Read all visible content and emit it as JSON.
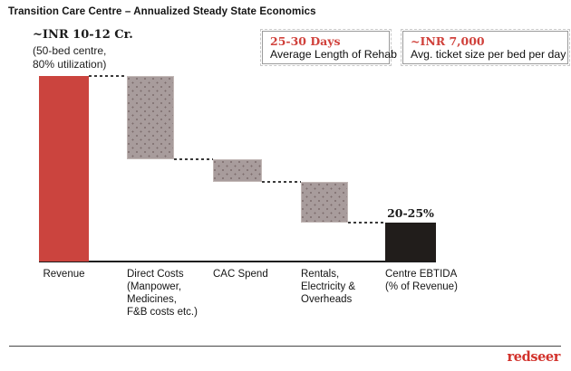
{
  "title": "Transition Care Centre – Annualized Steady State Economics",
  "revenue_annotation": {
    "value": "~INR 10-12 Cr.",
    "detail_line1": "(50-bed centre,",
    "detail_line2": "80% utilization)"
  },
  "callouts": [
    {
      "value": "25-30 Days",
      "label": "Average Length of Rehab"
    },
    {
      "value": "~INR 7,000",
      "label": "Avg. ticket size per bed per day"
    }
  ],
  "footer": {
    "logo_text": "redseer"
  },
  "chart_data": {
    "type": "bar",
    "subtype": "waterfall",
    "title": "Transition Care Centre – Annualized Steady State Economics",
    "ylim": [
      0,
      100
    ],
    "grid": false,
    "y_axis_visible": false,
    "unit": "estimated % of revenue (no numeric axis shown in figure)",
    "colors": {
      "start": "#cb443e",
      "cost": "#a89c9c",
      "total": "#211d1b"
    },
    "bars": [
      {
        "name": "Revenue",
        "role": "start",
        "value": 100,
        "label_lines": [
          "Revenue"
        ],
        "annotation": "~INR 10-12 Cr. (50-bed centre, 80% utilization)"
      },
      {
        "name": "Direct Costs",
        "role": "cost",
        "value": -45,
        "label_lines": [
          "Direct Costs",
          "(Manpower,",
          "Medicines,",
          "F&B costs etc.)"
        ]
      },
      {
        "name": "CAC Spend",
        "role": "cost",
        "value": -12,
        "label_lines": [
          "CAC Spend"
        ]
      },
      {
        "name": "Rentals, Electricity & Overheads",
        "role": "cost",
        "value": -22,
        "label_lines": [
          "Rentals,",
          "Electricity &",
          "Overheads"
        ]
      },
      {
        "name": "Centre EBTIDA",
        "role": "total",
        "value": 21,
        "label_lines": [
          "Centre EBTIDA",
          "(% of Revenue)"
        ],
        "data_label": "20-25%"
      }
    ]
  }
}
